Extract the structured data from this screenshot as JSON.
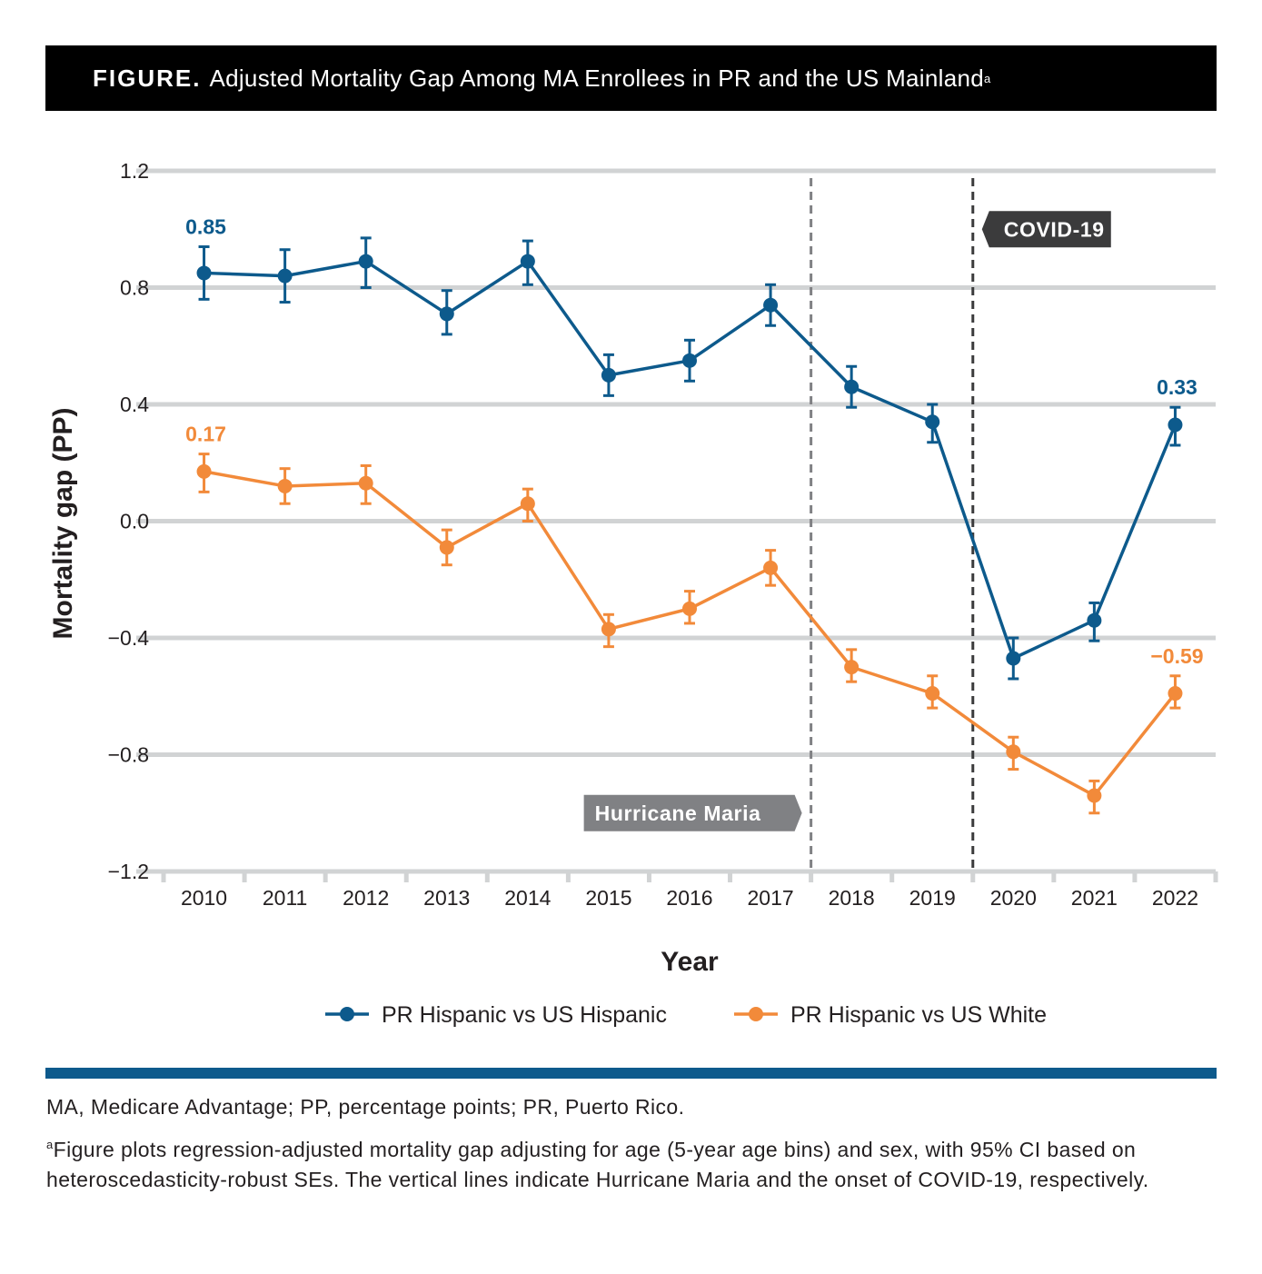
{
  "figure": {
    "label": "FIGURE.",
    "title": "Adjusted Mortality Gap Among MA Enrollees in PR and the US Mainland",
    "title_sup": "a"
  },
  "chart_data": {
    "type": "line",
    "title": "Adjusted Mortality Gap Among MA Enrollees in PR and the US Mainland",
    "xlabel": "Year",
    "ylabel": "Mortality gap (PP)",
    "ylim": [
      -1.2,
      1.2
    ],
    "yticks": [
      1.2,
      0.8,
      0.4,
      0.0,
      -0.4,
      -0.8,
      -1.2
    ],
    "ytick_labels": [
      "1.2",
      "0.8",
      "0.4",
      "0.0",
      "−0.4",
      "−0.8",
      "−1.2"
    ],
    "grid": true,
    "categories": [
      "2010",
      "2011",
      "2012",
      "2013",
      "2014",
      "2015",
      "2016",
      "2017",
      "2018",
      "2019",
      "2020",
      "2021",
      "2022"
    ],
    "series": [
      {
        "name": "PR Hispanic vs US Hispanic",
        "color": "#0d5a8c",
        "values": [
          0.85,
          0.84,
          0.89,
          0.71,
          0.89,
          0.5,
          0.55,
          0.74,
          0.46,
          0.34,
          -0.47,
          -0.34,
          0.33
        ],
        "ci_low": [
          0.76,
          0.75,
          0.8,
          0.64,
          0.81,
          0.43,
          0.48,
          0.67,
          0.39,
          0.27,
          -0.54,
          -0.41,
          0.26
        ],
        "ci_high": [
          0.94,
          0.93,
          0.97,
          0.79,
          0.96,
          0.57,
          0.62,
          0.81,
          0.53,
          0.4,
          -0.4,
          -0.28,
          0.39
        ],
        "labels": [
          {
            "index": 0,
            "text": "0.85"
          },
          {
            "index": 12,
            "text": "0.33"
          }
        ]
      },
      {
        "name": "PR Hispanic vs US White",
        "color": "#f28a3a",
        "values": [
          0.17,
          0.12,
          0.13,
          -0.09,
          0.06,
          -0.37,
          -0.3,
          -0.16,
          -0.5,
          -0.59,
          -0.79,
          -0.94,
          -0.59
        ],
        "ci_low": [
          0.1,
          0.06,
          0.06,
          -0.15,
          0.0,
          -0.43,
          -0.35,
          -0.22,
          -0.55,
          -0.64,
          -0.85,
          -1.0,
          -0.64
        ],
        "ci_high": [
          0.23,
          0.18,
          0.19,
          -0.03,
          0.11,
          -0.32,
          -0.24,
          -0.1,
          -0.44,
          -0.53,
          -0.74,
          -0.89,
          -0.53
        ],
        "labels": [
          {
            "index": 0,
            "text": "0.17"
          },
          {
            "index": 12,
            "text": "−0.59"
          }
        ]
      }
    ],
    "annotations": [
      {
        "text": "Hurricane Maria",
        "between": [
          "2017",
          "2018"
        ],
        "line_color": "#808184",
        "box_color": "#808184",
        "box_side": "left",
        "box_y": -1.0
      },
      {
        "text": "COVID-19",
        "between": [
          "2019",
          "2020"
        ],
        "line_color": "#3b3b3c",
        "box_color": "#3b3b3c",
        "box_side": "right",
        "box_y": 1.0
      }
    ],
    "legend_position": "bottom-center"
  },
  "footnotes": {
    "abbreviations": "MA, Medicare Advantage; PP, percentage points; PR, Puerto Rico.",
    "note_marker": "a",
    "note": "Figure plots regression-adjusted mortality gap adjusting for age (5-year age bins) and sex, with 95% CI based on heteroscedasticity-robust SEs. The vertical lines indicate Hurricane Maria and the onset of COVID-19, respectively."
  }
}
